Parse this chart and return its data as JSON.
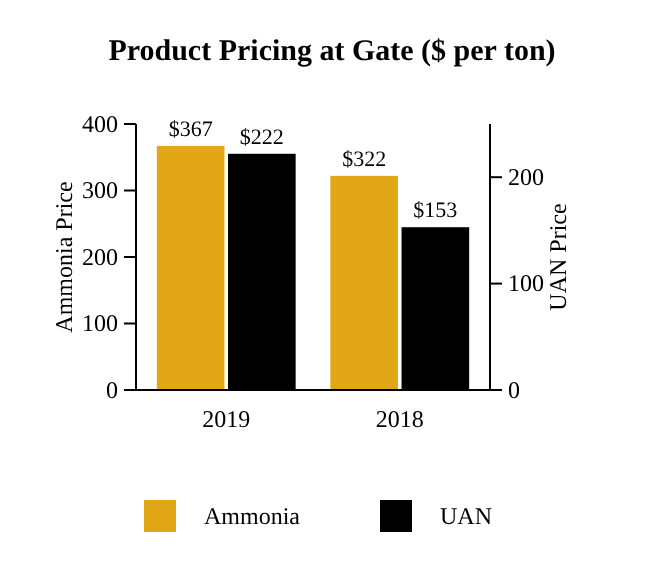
{
  "chart_data": {
    "type": "bar",
    "title": "Product Pricing at Gate ($ per ton)",
    "ylabel": "Ammonia Price",
    "y2label": "UAN Price",
    "categories": [
      "2019",
      "2018"
    ],
    "series": [
      {
        "name": "Ammonia",
        "color": "#e2a716",
        "values": [
          367,
          322
        ],
        "value_labels": [
          "$367",
          "$322"
        ]
      },
      {
        "name": "UAN",
        "color": "#000000",
        "values": [
          222,
          153
        ],
        "value_labels": [
          "$222",
          "$153"
        ],
        "axis": "y2"
      }
    ],
    "ylim": [
      0,
      400
    ],
    "yticks": [
      0,
      100,
      200,
      300,
      400
    ],
    "y2lim": [
      0,
      250
    ],
    "y2ticks": [
      0,
      100,
      200
    ],
    "legend": "bottom",
    "grid": false
  }
}
